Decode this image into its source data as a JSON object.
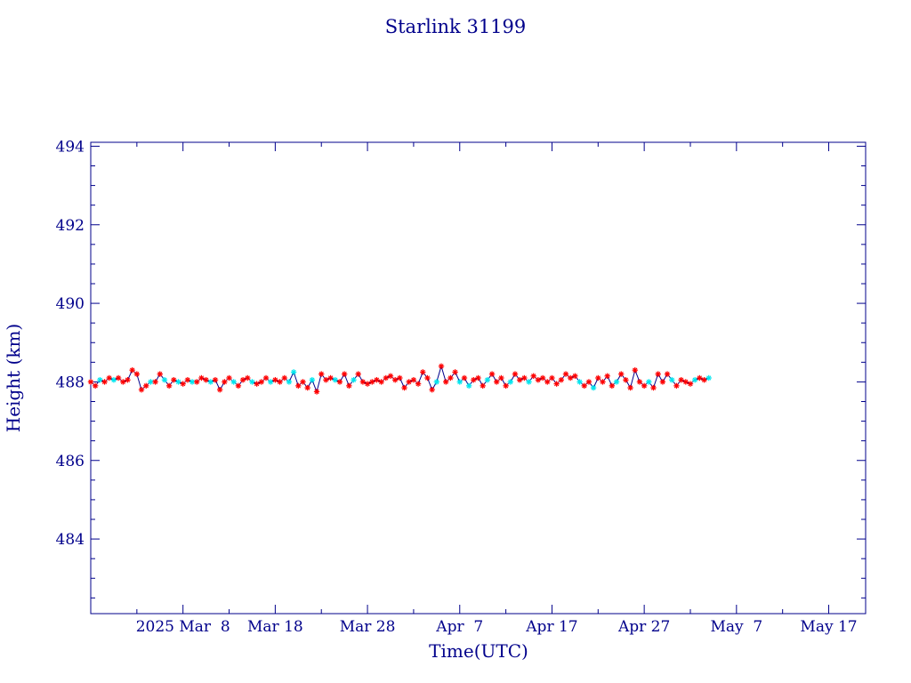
{
  "chart_data": {
    "type": "line",
    "title": "Starlink 31199",
    "xlabel": "Time(UTC)",
    "ylabel": "Height (km)",
    "x_tick_labels": [
      "2025 Mar  8",
      "Mar 18",
      "Mar 28",
      "Apr  7",
      "Apr 17",
      "Apr 27",
      "May  7",
      "May 17"
    ],
    "y_tick_labels": [
      "484",
      "486",
      "488",
      "490",
      "492",
      "494"
    ],
    "ylim": [
      482.1,
      494.1
    ],
    "xlim": [
      "2025-02-26",
      "2025-05-21"
    ],
    "grid": false,
    "colors": {
      "axis": "#00008b",
      "line": "#00008b",
      "marker_primary": "#ff0000",
      "marker_secondary": "#00e5ee"
    },
    "series": [
      {
        "points": [
          [
            "2025-02-26",
            488.0,
            "r"
          ],
          [
            "2025-02-26T12",
            487.9,
            "r"
          ],
          [
            "2025-02-27",
            488.05,
            "c"
          ],
          [
            "2025-02-27T12",
            488.0,
            "r"
          ],
          [
            "2025-02-28",
            488.1,
            "r"
          ],
          [
            "2025-02-28T12",
            488.05,
            "c"
          ],
          [
            "2025-03-01",
            488.1,
            "r"
          ],
          [
            "2025-03-01T12",
            488.0,
            "r"
          ],
          [
            "2025-03-02",
            488.05,
            "r"
          ],
          [
            "2025-03-02T12",
            488.3,
            "r"
          ],
          [
            "2025-03-03",
            488.2,
            "r"
          ],
          [
            "2025-03-03T12",
            487.8,
            "r"
          ],
          [
            "2025-03-04",
            487.9,
            "r"
          ],
          [
            "2025-03-04T12",
            488.0,
            "c"
          ],
          [
            "2025-03-05",
            488.0,
            "r"
          ],
          [
            "2025-03-05T12",
            488.2,
            "r"
          ],
          [
            "2025-03-06",
            488.05,
            "c"
          ],
          [
            "2025-03-06T12",
            487.9,
            "r"
          ],
          [
            "2025-03-07",
            488.05,
            "r"
          ],
          [
            "2025-03-07T12",
            488.0,
            "c"
          ],
          [
            "2025-03-08",
            487.95,
            "r"
          ],
          [
            "2025-03-08T12",
            488.05,
            "r"
          ],
          [
            "2025-03-09",
            488.0,
            "c"
          ],
          [
            "2025-03-09T12",
            488.0,
            "r"
          ],
          [
            "2025-03-10",
            488.1,
            "r"
          ],
          [
            "2025-03-10T12",
            488.05,
            "r"
          ],
          [
            "2025-03-11",
            488.0,
            "c"
          ],
          [
            "2025-03-11T12",
            488.05,
            "r"
          ],
          [
            "2025-03-12",
            487.8,
            "r"
          ],
          [
            "2025-03-12T12",
            488.0,
            "r"
          ],
          [
            "2025-03-13",
            488.1,
            "r"
          ],
          [
            "2025-03-13T12",
            488.0,
            "c"
          ],
          [
            "2025-03-14",
            487.9,
            "r"
          ],
          [
            "2025-03-14T12",
            488.05,
            "r"
          ],
          [
            "2025-03-15",
            488.1,
            "r"
          ],
          [
            "2025-03-15T12",
            488.0,
            "c"
          ],
          [
            "2025-03-16",
            487.95,
            "r"
          ],
          [
            "2025-03-16T12",
            488.0,
            "r"
          ],
          [
            "2025-03-17",
            488.1,
            "r"
          ],
          [
            "2025-03-17T12",
            488.0,
            "c"
          ],
          [
            "2025-03-18",
            488.05,
            "r"
          ],
          [
            "2025-03-18T12",
            488.0,
            "r"
          ],
          [
            "2025-03-19",
            488.1,
            "r"
          ],
          [
            "2025-03-19T12",
            488.0,
            "c"
          ],
          [
            "2025-03-20",
            488.25,
            "c"
          ],
          [
            "2025-03-20T12",
            487.9,
            "r"
          ],
          [
            "2025-03-21",
            488.0,
            "r"
          ],
          [
            "2025-03-21T12",
            487.85,
            "r"
          ],
          [
            "2025-03-22",
            488.05,
            "c"
          ],
          [
            "2025-03-22T12",
            487.75,
            "r"
          ],
          [
            "2025-03-23",
            488.2,
            "r"
          ],
          [
            "2025-03-23T12",
            488.05,
            "r"
          ],
          [
            "2025-03-24",
            488.1,
            "r"
          ],
          [
            "2025-03-24T12",
            488.05,
            "c"
          ],
          [
            "2025-03-25",
            488.0,
            "r"
          ],
          [
            "2025-03-25T12",
            488.2,
            "r"
          ],
          [
            "2025-03-26",
            487.9,
            "r"
          ],
          [
            "2025-03-26T12",
            488.05,
            "c"
          ],
          [
            "2025-03-27",
            488.2,
            "r"
          ],
          [
            "2025-03-27T12",
            488.0,
            "r"
          ],
          [
            "2025-03-28",
            487.95,
            "r"
          ],
          [
            "2025-03-28T12",
            488.0,
            "r"
          ],
          [
            "2025-03-29",
            488.05,
            "r"
          ],
          [
            "2025-03-29T12",
            488.0,
            "r"
          ],
          [
            "2025-03-30",
            488.1,
            "r"
          ],
          [
            "2025-03-30T12",
            488.15,
            "r"
          ],
          [
            "2025-03-31",
            488.05,
            "r"
          ],
          [
            "2025-03-31T12",
            488.1,
            "r"
          ],
          [
            "2025-04-01",
            487.85,
            "r"
          ],
          [
            "2025-04-01T12",
            488.0,
            "r"
          ],
          [
            "2025-04-02",
            488.05,
            "r"
          ],
          [
            "2025-04-02T12",
            487.95,
            "r"
          ],
          [
            "2025-04-03",
            488.25,
            "r"
          ],
          [
            "2025-04-03T12",
            488.1,
            "r"
          ],
          [
            "2025-04-04",
            487.8,
            "r"
          ],
          [
            "2025-04-04T12",
            488.0,
            "c"
          ],
          [
            "2025-04-05",
            488.4,
            "r"
          ],
          [
            "2025-04-05T12",
            488.0,
            "r"
          ],
          [
            "2025-04-06",
            488.1,
            "r"
          ],
          [
            "2025-04-06T12",
            488.25,
            "r"
          ],
          [
            "2025-04-07",
            488.0,
            "c"
          ],
          [
            "2025-04-07T12",
            488.1,
            "r"
          ],
          [
            "2025-04-08",
            487.9,
            "c"
          ],
          [
            "2025-04-08T12",
            488.05,
            "r"
          ],
          [
            "2025-04-09",
            488.1,
            "r"
          ],
          [
            "2025-04-09T12",
            487.9,
            "r"
          ],
          [
            "2025-04-10",
            488.05,
            "c"
          ],
          [
            "2025-04-10T12",
            488.2,
            "r"
          ],
          [
            "2025-04-11",
            488.0,
            "r"
          ],
          [
            "2025-04-11T12",
            488.1,
            "r"
          ],
          [
            "2025-04-12",
            487.9,
            "r"
          ],
          [
            "2025-04-12T12",
            488.0,
            "c"
          ],
          [
            "2025-04-13",
            488.2,
            "r"
          ],
          [
            "2025-04-13T12",
            488.05,
            "r"
          ],
          [
            "2025-04-14",
            488.1,
            "r"
          ],
          [
            "2025-04-14T12",
            488.0,
            "c"
          ],
          [
            "2025-04-15",
            488.15,
            "r"
          ],
          [
            "2025-04-15T12",
            488.05,
            "r"
          ],
          [
            "2025-04-16",
            488.1,
            "r"
          ],
          [
            "2025-04-16T12",
            488.0,
            "r"
          ],
          [
            "2025-04-17",
            488.1,
            "r"
          ],
          [
            "2025-04-17T12",
            487.95,
            "r"
          ],
          [
            "2025-04-18",
            488.05,
            "r"
          ],
          [
            "2025-04-18T12",
            488.2,
            "r"
          ],
          [
            "2025-04-19",
            488.1,
            "r"
          ],
          [
            "2025-04-19T12",
            488.15,
            "r"
          ],
          [
            "2025-04-20",
            488.0,
            "c"
          ],
          [
            "2025-04-20T12",
            487.9,
            "r"
          ],
          [
            "2025-04-21",
            488.0,
            "r"
          ],
          [
            "2025-04-21T12",
            487.85,
            "c"
          ],
          [
            "2025-04-22",
            488.1,
            "r"
          ],
          [
            "2025-04-22T12",
            488.0,
            "r"
          ],
          [
            "2025-04-23",
            488.15,
            "r"
          ],
          [
            "2025-04-23T12",
            487.9,
            "r"
          ],
          [
            "2025-04-24",
            488.0,
            "c"
          ],
          [
            "2025-04-24T12",
            488.2,
            "r"
          ],
          [
            "2025-04-25",
            488.05,
            "r"
          ],
          [
            "2025-04-25T12",
            487.85,
            "r"
          ],
          [
            "2025-04-26",
            488.3,
            "r"
          ],
          [
            "2025-04-26T12",
            488.0,
            "r"
          ],
          [
            "2025-04-27",
            487.9,
            "r"
          ],
          [
            "2025-04-27T12",
            488.0,
            "c"
          ],
          [
            "2025-04-28",
            487.85,
            "r"
          ],
          [
            "2025-04-28T12",
            488.2,
            "r"
          ],
          [
            "2025-04-29",
            488.0,
            "r"
          ],
          [
            "2025-04-29T12",
            488.2,
            "r"
          ],
          [
            "2025-04-30",
            488.05,
            "c"
          ],
          [
            "2025-04-30T12",
            487.9,
            "r"
          ],
          [
            "2025-05-01",
            488.05,
            "r"
          ],
          [
            "2025-05-01T12",
            488.0,
            "r"
          ],
          [
            "2025-05-02",
            487.95,
            "r"
          ],
          [
            "2025-05-02T12",
            488.05,
            "c"
          ],
          [
            "2025-05-03",
            488.1,
            "r"
          ],
          [
            "2025-05-03T12",
            488.05,
            "r"
          ],
          [
            "2025-05-04",
            488.1,
            "c"
          ]
        ]
      }
    ]
  }
}
